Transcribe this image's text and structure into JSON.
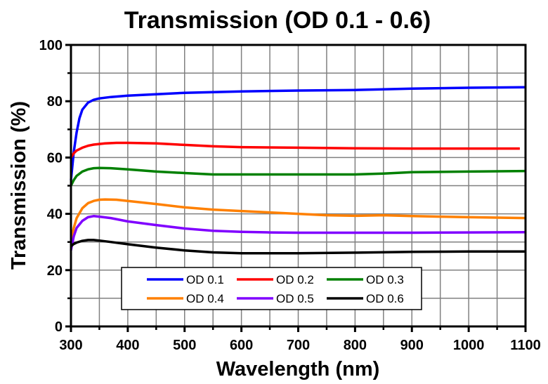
{
  "chart_data": {
    "type": "line",
    "title": "Transmission (OD 0.1 - 0.6)",
    "xlabel": "Wavelength (nm)",
    "ylabel": "Transmission (%)",
    "xlim": [
      300,
      1100
    ],
    "ylim": [
      0,
      100
    ],
    "xticks": [
      300,
      400,
      500,
      600,
      700,
      800,
      900,
      1000,
      1100
    ],
    "xticks_minor": [
      350,
      450,
      550,
      650,
      750,
      850,
      950,
      1050
    ],
    "yticks": [
      0,
      20,
      40,
      60,
      80,
      100
    ],
    "yticks_minor": [
      10,
      30,
      50,
      70,
      90
    ],
    "grid": true,
    "legend": {
      "position": "bottom-left inside",
      "columns": 3
    },
    "series": [
      {
        "name": "OD 0.1",
        "color": "#0000ff",
        "x": [
          300,
          305,
          310,
          315,
          320,
          330,
          340,
          350,
          370,
          400,
          450,
          500,
          600,
          700,
          800,
          900,
          1000,
          1100
        ],
        "y": [
          52,
          62,
          69,
          74,
          77,
          79.5,
          80.5,
          81,
          81.5,
          82,
          82.5,
          83,
          83.5,
          83.8,
          84,
          84.5,
          84.8,
          85
        ]
      },
      {
        "name": "OD 0.2",
        "color": "#ff0000",
        "x": [
          300,
          305,
          310,
          320,
          330,
          340,
          360,
          380,
          400,
          450,
          500,
          550,
          600,
          700,
          800,
          900,
          1000,
          1090
        ],
        "y": [
          60,
          61.5,
          62.5,
          63.5,
          64.2,
          64.6,
          65,
          65.2,
          65.2,
          65,
          64.5,
          64,
          63.7,
          63.5,
          63.3,
          63.2,
          63.2,
          63.2
        ]
      },
      {
        "name": "OD 0.3",
        "color": "#008000",
        "x": [
          300,
          305,
          310,
          320,
          330,
          340,
          350,
          370,
          400,
          450,
          500,
          550,
          600,
          700,
          800,
          850,
          900,
          1000,
          1100
        ],
        "y": [
          50,
          52,
          53.5,
          55,
          55.8,
          56.2,
          56.3,
          56.2,
          55.8,
          55,
          54.5,
          54,
          54,
          54,
          54,
          54.3,
          54.8,
          55,
          55.2
        ]
      },
      {
        "name": "OD 0.4",
        "color": "#ff8000",
        "x": [
          300,
          305,
          310,
          320,
          330,
          340,
          350,
          360,
          380,
          400,
          450,
          500,
          550,
          600,
          650,
          700,
          750,
          800,
          850,
          900,
          950,
          1000,
          1100
        ],
        "y": [
          30,
          35,
          38.5,
          42,
          43.8,
          44.6,
          45,
          45.1,
          45,
          44.6,
          43.5,
          42.3,
          41.5,
          41,
          40.5,
          40,
          39.5,
          39.3,
          39.5,
          39.2,
          39,
          38.8,
          38.5
        ]
      },
      {
        "name": "OD 0.5",
        "color": "#8000ff",
        "x": [
          300,
          305,
          310,
          320,
          330,
          340,
          350,
          370,
          400,
          450,
          500,
          550,
          600,
          650,
          700,
          800,
          900,
          1000,
          1100
        ],
        "y": [
          27,
          32,
          35,
          37.5,
          38.8,
          39.2,
          39,
          38.5,
          37.3,
          36,
          34.8,
          34,
          33.6,
          33.4,
          33.3,
          33.3,
          33.3,
          33.4,
          33.5
        ]
      },
      {
        "name": "OD 0.6",
        "color": "#000000",
        "x": [
          300,
          305,
          310,
          320,
          330,
          340,
          350,
          370,
          400,
          450,
          500,
          550,
          600,
          700,
          800,
          900,
          1000,
          1100
        ],
        "y": [
          28.5,
          29.3,
          29.8,
          30.4,
          30.7,
          30.7,
          30.5,
          30,
          29.2,
          28,
          27,
          26.3,
          26,
          26,
          26.2,
          26.5,
          26.6,
          26.6
        ]
      }
    ]
  }
}
